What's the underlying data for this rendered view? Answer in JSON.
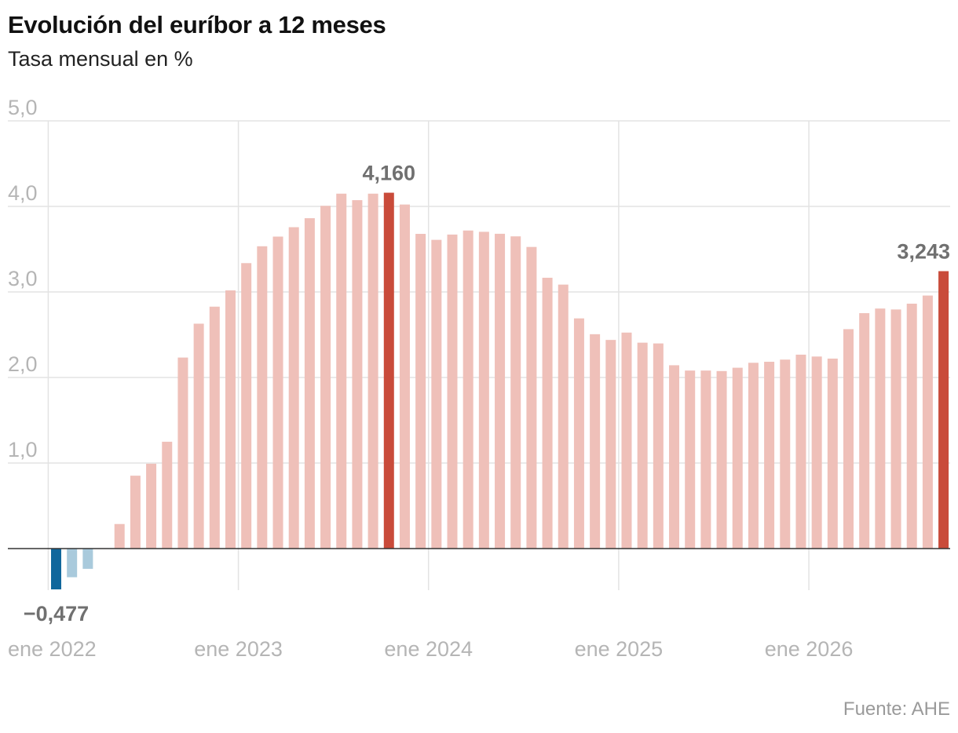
{
  "header": {
    "title": "Evolución del euríbor a 12 meses",
    "subtitle": "Tasa mensual en %"
  },
  "source": "Fuente: AHE",
  "chart_data": {
    "type": "bar",
    "title": "Evolución del euríbor a 12 meses",
    "subtitle": "Tasa mensual en %",
    "xlabel": "",
    "ylabel": "",
    "ylim": [
      -0.6,
      5.0
    ],
    "y_ticks": [
      {
        "value": 5.0,
        "label": "5,0"
      },
      {
        "value": 4.0,
        "label": "4,0"
      },
      {
        "value": 3.0,
        "label": "3,0"
      },
      {
        "value": 2.0,
        "label": "2,0"
      },
      {
        "value": 1.0,
        "label": "1,0"
      }
    ],
    "x_ticks": [
      {
        "index": 0,
        "label": "ene 2022"
      },
      {
        "index": 12,
        "label": "ene 2023"
      },
      {
        "index": 24,
        "label": "ene 2024"
      },
      {
        "index": 36,
        "label": "ene 2025"
      },
      {
        "index": 48,
        "label": "ene 2026"
      }
    ],
    "grid": true,
    "legend": "none",
    "colors": {
      "positive": "#efc0b9",
      "positive_highlight": "#c94b3a",
      "negative": "#a9cadc",
      "negative_highlight": "#10679c",
      "grid": "#e3e3e3",
      "baseline": "#333333"
    },
    "values": [
      -0.477,
      -0.335,
      -0.237,
      0.005,
      0.287,
      0.852,
      0.992,
      1.249,
      2.233,
      2.629,
      2.828,
      3.018,
      3.337,
      3.534,
      3.647,
      3.757,
      3.862,
      4.007,
      4.149,
      4.073,
      4.149,
      4.16,
      4.022,
      3.679,
      3.609,
      3.671,
      3.718,
      3.703,
      3.68,
      3.65,
      3.526,
      3.166,
      3.086,
      2.691,
      2.506,
      2.439,
      2.525,
      2.407,
      2.398,
      2.143,
      2.081,
      2.081,
      2.075,
      2.114,
      2.172,
      2.184,
      2.209,
      2.267,
      2.245,
      2.221,
      2.565,
      2.752,
      2.806,
      2.795,
      2.863,
      2.958,
      3.243
    ],
    "highlights": [
      {
        "index": 0,
        "label": "−0,477"
      },
      {
        "index": 21,
        "label": "4,160"
      },
      {
        "index": 56,
        "label": "3,243"
      }
    ]
  }
}
